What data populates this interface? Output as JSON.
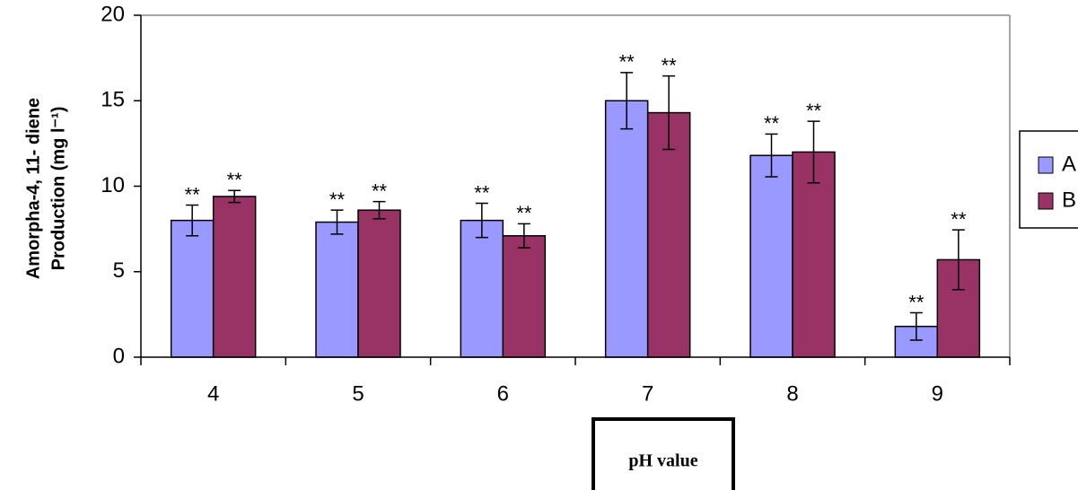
{
  "chart_data": {
    "type": "bar",
    "categories": [
      "4",
      "5",
      "6",
      "7",
      "8",
      "9"
    ],
    "series": [
      {
        "name": "A",
        "color": "#9999ff",
        "values": [
          8.0,
          7.9,
          8.0,
          15.0,
          11.8,
          1.8
        ],
        "errors": [
          0.9,
          0.7,
          1.0,
          1.65,
          1.25,
          0.8
        ],
        "annotations": [
          "**",
          "**",
          "**",
          "**",
          "**",
          "**"
        ]
      },
      {
        "name": "B",
        "color": "#993366",
        "values": [
          9.4,
          8.6,
          7.1,
          14.3,
          12.0,
          5.7
        ],
        "errors": [
          0.35,
          0.5,
          0.7,
          2.15,
          1.8,
          1.75
        ],
        "annotations": [
          "**",
          "**",
          "**",
          "**",
          "**",
          "**"
        ]
      }
    ],
    "ylabel": [
      "Amorpha-4, 11- diene",
      "Production (mg l⁻¹)"
    ],
    "xlabel": "pH value",
    "ylim": [
      0,
      20
    ],
    "yticks": [
      0,
      5,
      10,
      15,
      20
    ]
  }
}
